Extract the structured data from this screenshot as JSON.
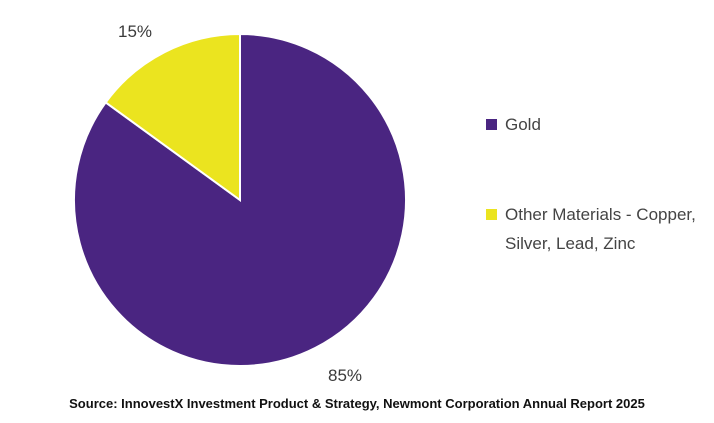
{
  "colors": {
    "gold": "#4a2581",
    "other": "#ebe41f"
  },
  "chart_data": {
    "type": "pie",
    "slices": [
      {
        "name": "Gold",
        "value": 85,
        "label": "85%",
        "color": "#4a2581"
      },
      {
        "name": "Other Materials - Copper, Silver, Lead, Zinc",
        "value": 15,
        "label": "15%",
        "color": "#ebe41f"
      }
    ],
    "legend_position": "right"
  },
  "legend": {
    "items": [
      {
        "label": "Gold",
        "color": "#4a2581"
      },
      {
        "label": "Other Materials - Copper, Silver, Lead, Zinc",
        "color": "#ebe41f"
      }
    ]
  },
  "source": "Source: InnovestX Investment Product & Strategy, Newmont Corporation Annual Report 2025"
}
